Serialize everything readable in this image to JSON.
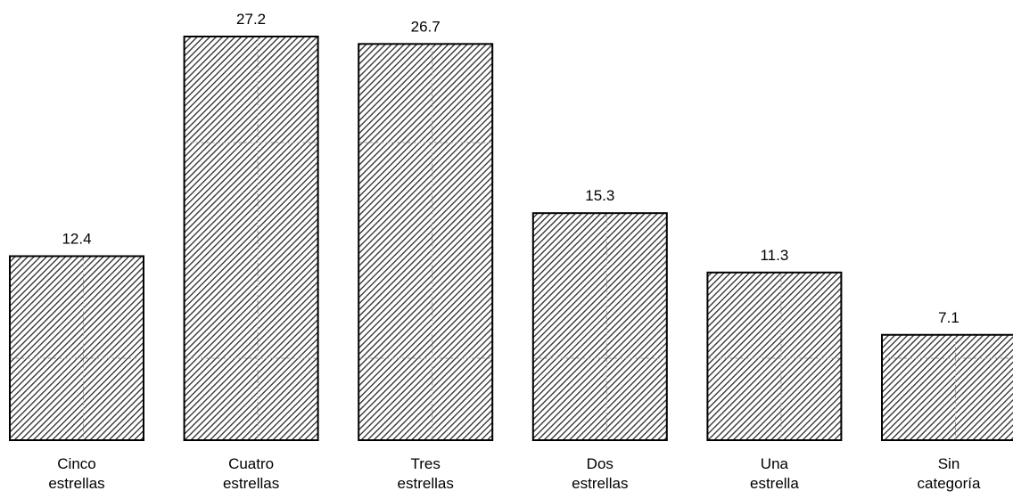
{
  "chart_data": {
    "type": "bar",
    "categories": [
      [
        "Cinco",
        "estrellas"
      ],
      [
        "Cuatro",
        "estrellas"
      ],
      [
        "Tres",
        "estrellas"
      ],
      [
        "Dos",
        "estrellas"
      ],
      [
        "Una",
        "estrella"
      ],
      [
        "Sin",
        "categoría"
      ]
    ],
    "values": [
      12.4,
      27.2,
      26.7,
      15.3,
      11.3,
      7.1
    ],
    "value_labels": [
      "12.4",
      "27.2",
      "26.7",
      "15.3",
      "11.3",
      "7.1"
    ],
    "title": "",
    "xlabel": "",
    "ylabel": "",
    "ylim": [
      0,
      28.3
    ],
    "grid": "dashed horizontal and vertical lines behind hatched bars",
    "legend": "none",
    "colors": {
      "bar_fill": "#ffffff",
      "hatch": "#2a2a2a",
      "border": "#000000",
      "gridline": "#9a9a9a"
    }
  }
}
